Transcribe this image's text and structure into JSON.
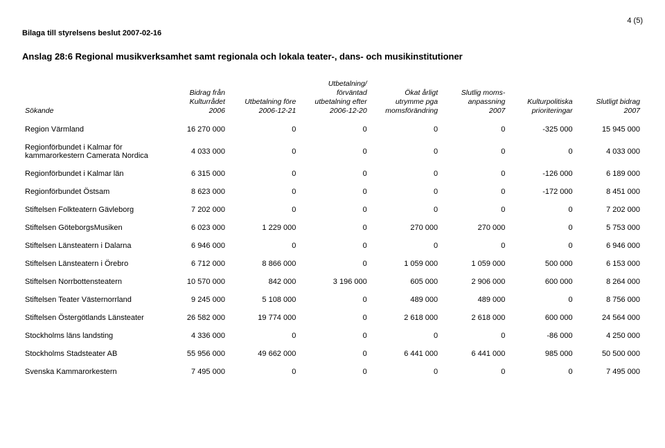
{
  "page_number": "4 (5)",
  "appendix_line": "Bilaga till styrelsens beslut 2007-02-16",
  "title": "Anslag 28:6 Regional musikverksamhet samt regionala och lokala teater-, dans- och musikinstitutioner",
  "columns": [
    "Sökande",
    "Bidrag från Kulturrådet 2006",
    "Utbetalning före 2006-12-21",
    "Utbetalning/ förväntad utbetalning efter 2006-12-20",
    "Ökat årligt utrymme pga momsförändring",
    "Slutlig moms- anpassning 2007",
    "Kulturpolitiska prioriteringar",
    "Slutligt bidrag 2007"
  ],
  "header_lines": [
    [
      "Sökande"
    ],
    [
      "Bidrag från",
      "Kulturrådet",
      "2006"
    ],
    [
      "Utbetalning före",
      "2006-12-21"
    ],
    [
      "Utbetalning/",
      "förväntad",
      "utbetalning efter",
      "2006-12-20"
    ],
    [
      "Ökat årligt",
      "utrymme pga",
      "momsförändring"
    ],
    [
      "Slutlig moms-",
      "anpassning",
      "2007"
    ],
    [
      "Kulturpolitiska",
      "prioriteringar"
    ],
    [
      "Slutligt bidrag",
      "2007"
    ]
  ],
  "rows": [
    [
      "Region Värmland",
      "16 270 000",
      "0",
      "0",
      "0",
      "0",
      "-325 000",
      "15 945 000"
    ],
    [
      "Regionförbundet i Kalmar för kammarorkestern Camerata Nordica",
      "4 033 000",
      "0",
      "0",
      "0",
      "0",
      "0",
      "4 033 000"
    ],
    [
      "Regionförbundet i Kalmar län",
      "6 315 000",
      "0",
      "0",
      "0",
      "0",
      "-126 000",
      "6 189 000"
    ],
    [
      "Regionförbundet Östsam",
      "8 623 000",
      "0",
      "0",
      "0",
      "0",
      "-172 000",
      "8 451 000"
    ],
    [
      "Stiftelsen Folkteatern Gävleborg",
      "7 202 000",
      "0",
      "0",
      "0",
      "0",
      "0",
      "7 202 000"
    ],
    [
      "Stiftelsen GöteborgsMusiken",
      "6 023 000",
      "1 229 000",
      "0",
      "270 000",
      "270 000",
      "0",
      "5 753 000"
    ],
    [
      "Stiftelsen Länsteatern i Dalarna",
      "6 946 000",
      "0",
      "0",
      "0",
      "0",
      "0",
      "6 946 000"
    ],
    [
      "Stiftelsen Länsteatern i Örebro",
      "6 712 000",
      "8 866 000",
      "0",
      "1 059 000",
      "1 059 000",
      "500 000",
      "6 153 000"
    ],
    [
      "Stiftelsen Norrbottensteatern",
      "10 570 000",
      "842 000",
      "3 196 000",
      "605 000",
      "2 906 000",
      "600 000",
      "8 264 000"
    ],
    [
      "Stiftelsen Teater Västernorrland",
      "9 245 000",
      "5 108 000",
      "0",
      "489 000",
      "489 000",
      "0",
      "8 756 000"
    ],
    [
      "Stiftelsen Östergötlands Länsteater",
      "26 582 000",
      "19 774 000",
      "0",
      "2 618 000",
      "2 618 000",
      "600 000",
      "24 564 000"
    ],
    [
      "Stockholms läns landsting",
      "4 336 000",
      "0",
      "0",
      "0",
      "0",
      "-86 000",
      "4 250 000"
    ],
    [
      "Stockholms Stadsteater AB",
      "55 956 000",
      "49 662 000",
      "0",
      "6 441 000",
      "6 441 000",
      "985 000",
      "50 500 000"
    ],
    [
      "Svenska Kammarorkestern",
      "7 495 000",
      "0",
      "0",
      "0",
      "0",
      "0",
      "7 495 000"
    ]
  ]
}
